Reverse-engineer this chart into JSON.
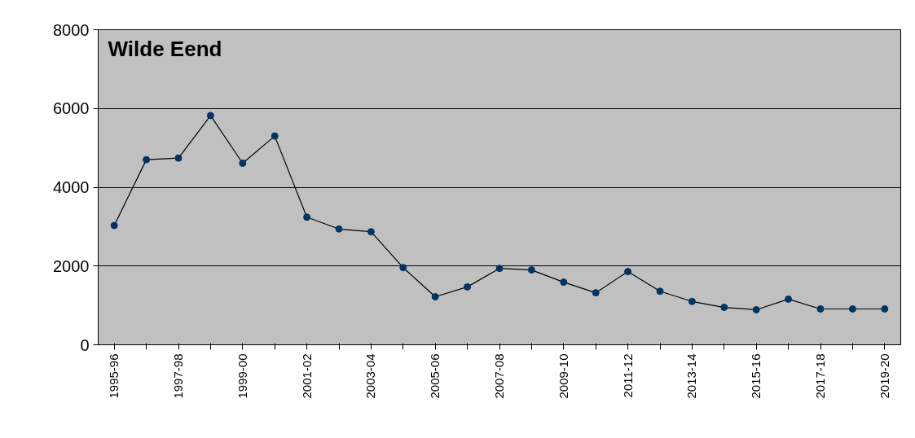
{
  "chart_data": {
    "type": "line",
    "title": "Wilde Eend",
    "categories": [
      "1995-96",
      null,
      "1997-98",
      null,
      "1999-00",
      null,
      "2001-02",
      null,
      "2003-04",
      null,
      "2005-06",
      null,
      "2007-08",
      null,
      "2009-10",
      null,
      "2011-12",
      null,
      "2013-14",
      null,
      "2015-16",
      null,
      "2017-18",
      null,
      "2019-20"
    ],
    "series": [
      {
        "color": "#003366",
        "values": [
          3030,
          4700,
          4740,
          5820,
          4610,
          5300,
          3240,
          2940,
          2870,
          1960,
          1220,
          1470,
          1940,
          1900,
          1590,
          1320,
          1860,
          1360,
          1100,
          950,
          890,
          1160,
          910,
          910,
          910
        ]
      }
    ],
    "ylim": [
      0,
      8000
    ],
    "yticks": [
      0,
      2000,
      4000,
      6000,
      8000
    ],
    "grid": "y",
    "marker": "circle",
    "line_style": "solid"
  }
}
